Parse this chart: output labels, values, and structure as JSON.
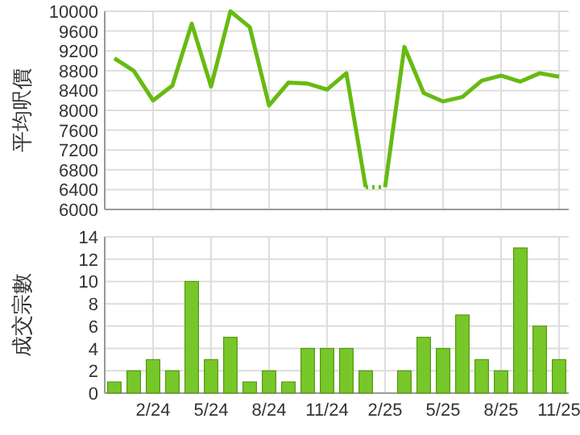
{
  "chart_data": [
    {
      "type": "line",
      "ylabel": "平均呎價",
      "categories": [
        null,
        null,
        null,
        null,
        null,
        null,
        null,
        null,
        null,
        null,
        null,
        null,
        null,
        null,
        null,
        null,
        null,
        null,
        null,
        null,
        null,
        null,
        null,
        null
      ],
      "ylim": [
        6000,
        10000
      ],
      "yticks": [
        6000,
        6400,
        6800,
        7200,
        7600,
        8000,
        8400,
        8800,
        9200,
        9600,
        10000
      ],
      "grid": true,
      "tick_labels": "y",
      "series": [
        {
          "color": "#66bb11",
          "line_style": "solid",
          "values": [
            9050,
            8800,
            8200,
            8500,
            9750,
            8480,
            10000,
            9680,
            8100,
            8560,
            8540,
            8420,
            8750,
            6450,
            null,
            null,
            null,
            null,
            null,
            null,
            null,
            null,
            null,
            null
          ]
        },
        {
          "color": "#66bb11",
          "line_style": "dotted",
          "values": [
            null,
            null,
            null,
            null,
            null,
            null,
            null,
            null,
            null,
            null,
            null,
            null,
            null,
            6450,
            6450,
            null,
            null,
            null,
            null,
            null,
            null,
            null,
            null,
            null
          ]
        },
        {
          "color": "#66bb11",
          "line_style": "solid",
          "values": [
            null,
            null,
            null,
            null,
            null,
            null,
            null,
            null,
            null,
            null,
            null,
            null,
            null,
            null,
            6450,
            9280,
            8350,
            8180,
            8270,
            8600,
            8700,
            8580,
            8750,
            8680
          ]
        }
      ]
    },
    {
      "type": "bar",
      "ylabel": "成交宗數",
      "categories": [
        null,
        null,
        "2/24",
        null,
        null,
        "5/24",
        null,
        null,
        "8/24",
        null,
        null,
        "11/24",
        null,
        null,
        "2/25",
        null,
        null,
        "5/25",
        null,
        null,
        "8/25",
        null,
        null,
        "11/25"
      ],
      "ylim": [
        0,
        14
      ],
      "yticks": [
        0,
        2,
        4,
        6,
        8,
        10,
        12,
        14
      ],
      "grid": true,
      "color": "#77c72a",
      "values": [
        1,
        2,
        3,
        2,
        10,
        3,
        5,
        1,
        2,
        1,
        4,
        4,
        4,
        2,
        0,
        2,
        5,
        4,
        7,
        3,
        2,
        13,
        6,
        3
      ]
    }
  ]
}
